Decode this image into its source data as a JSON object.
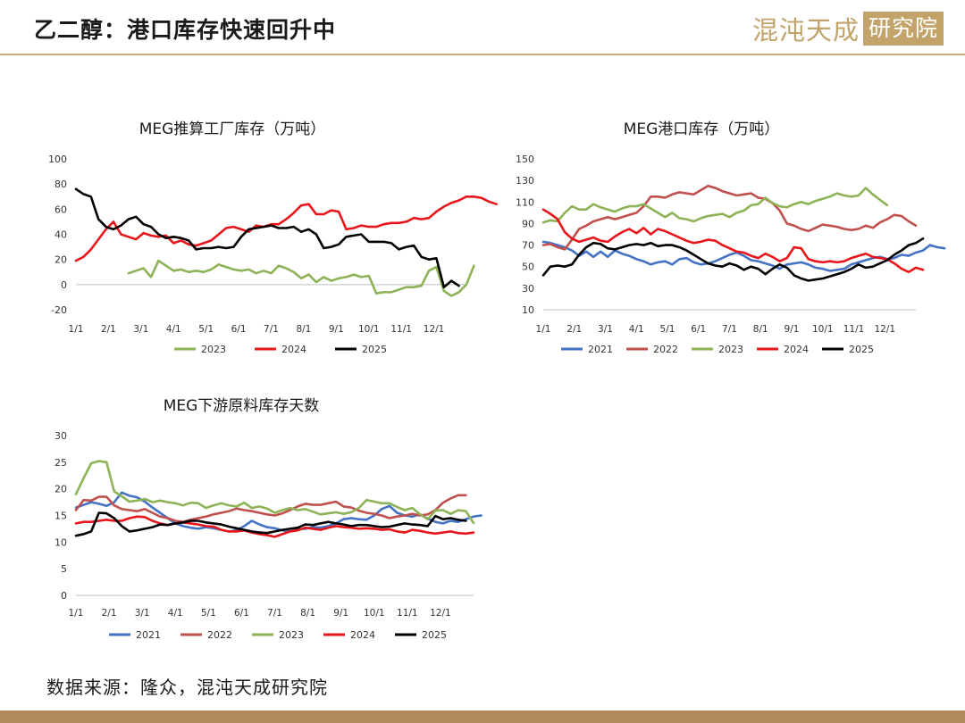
{
  "page": {
    "title": "乙二醇：港口库存快速回升中",
    "logo_text": "混沌天成",
    "logo_box": "研究院",
    "source": "数据来源：隆众，混沌天成研究院"
  },
  "series_colors": {
    "2021": "#4472c4",
    "2022": "#c0504d",
    "2023": "#8db356",
    "2024": "#e8161b",
    "2025": "#000000"
  },
  "chart_data": [
    {
      "id": "factory",
      "type": "line",
      "title": "MEG推算工厂库存（万吨）",
      "x_ticks": [
        "1/1",
        "2/1",
        "3/1",
        "4/1",
        "5/1",
        "6/1",
        "7/1",
        "8/1",
        "9/1",
        "10/1",
        "11/1",
        "12/1"
      ],
      "ylim": [
        -20,
        100
      ],
      "y_ticks": [
        -20,
        0,
        20,
        40,
        60,
        80,
        100
      ],
      "series": [
        {
          "name": "2023",
          "values": [
            null,
            null,
            null,
            null,
            null,
            null,
            null,
            9,
            11,
            13,
            6,
            19,
            15,
            11,
            12,
            10,
            11,
            10,
            12,
            16,
            14,
            12,
            11,
            12,
            9,
            11,
            9,
            15,
            13,
            10,
            5,
            8,
            2,
            6,
            3,
            5,
            6,
            8,
            6,
            7,
            -7,
            -6,
            -6,
            -4,
            -2,
            -2,
            -1,
            11,
            14,
            -5,
            -9,
            -6,
            0,
            15
          ]
        },
        {
          "name": "2024",
          "values": [
            19,
            22,
            28,
            36,
            44,
            50,
            40,
            38,
            36,
            41,
            39,
            38,
            39,
            33,
            35,
            32,
            31,
            33,
            35,
            40,
            45,
            46,
            44,
            42,
            47,
            46,
            48,
            48,
            52,
            57,
            63,
            64,
            56,
            56,
            59,
            58,
            44,
            45,
            47,
            46,
            46,
            48,
            49,
            49,
            50,
            53,
            52,
            53,
            58,
            62,
            65,
            67,
            70,
            70,
            69,
            66,
            64
          ]
        },
        {
          "name": "2025",
          "values": [
            76,
            72,
            70,
            52,
            46,
            44,
            47,
            52,
            54,
            48,
            46,
            40,
            37,
            38,
            37,
            35,
            28,
            29,
            29,
            30,
            29,
            30,
            38,
            44,
            45,
            46,
            47,
            45,
            45,
            46,
            42,
            44,
            40,
            29,
            30,
            32,
            38,
            39,
            40,
            34,
            34,
            34,
            33,
            28,
            30,
            31,
            22,
            20,
            21,
            -2,
            3,
            -1
          ]
        }
      ]
    },
    {
      "id": "port",
      "type": "line",
      "title": "MEG港口库存（万吨）",
      "x_ticks": [
        "1/1",
        "2/1",
        "3/1",
        "4/1",
        "5/1",
        "6/1",
        "7/1",
        "8/1",
        "9/1",
        "10/1",
        "11/1",
        "12/1"
      ],
      "ylim": [
        10,
        150
      ],
      "y_ticks": [
        10,
        30,
        50,
        70,
        90,
        110,
        130,
        150
      ],
      "series": [
        {
          "name": "2021",
          "values": [
            73,
            72,
            70,
            68,
            65,
            60,
            64,
            59,
            64,
            59,
            65,
            62,
            60,
            57,
            55,
            52,
            54,
            55,
            52,
            57,
            58,
            54,
            52,
            53,
            55,
            58,
            61,
            63,
            60,
            56,
            55,
            53,
            51,
            48,
            52,
            53,
            54,
            52,
            49,
            48,
            46,
            47,
            48,
            52,
            54,
            56,
            58,
            59,
            57,
            58,
            61,
            60,
            63,
            65,
            70,
            68,
            67
          ]
        },
        {
          "name": "2022",
          "values": [
            70,
            71,
            68,
            66,
            75,
            85,
            88,
            92,
            94,
            96,
            94,
            96,
            98,
            100,
            106,
            115,
            115,
            114,
            117,
            119,
            118,
            117,
            121,
            125,
            123,
            120,
            118,
            116,
            117,
            118,
            114,
            113,
            109,
            102,
            90,
            88,
            85,
            83,
            86,
            89,
            88,
            87,
            85,
            84,
            85,
            88,
            86,
            91,
            94,
            98,
            97,
            92,
            88
          ]
        },
        {
          "name": "2023",
          "values": [
            91,
            93,
            92,
            100,
            106,
            103,
            103,
            108,
            105,
            103,
            101,
            104,
            106,
            106,
            108,
            104,
            100,
            96,
            100,
            95,
            94,
            92,
            95,
            97,
            98,
            99,
            96,
            100,
            102,
            107,
            108,
            114,
            109,
            106,
            105,
            108,
            110,
            108,
            111,
            113,
            115,
            118,
            116,
            115,
            116,
            123,
            117,
            112,
            107
          ]
        },
        {
          "name": "2024",
          "values": [
            103,
            99,
            94,
            82,
            76,
            73,
            75,
            77,
            74,
            73,
            78,
            82,
            85,
            81,
            86,
            80,
            85,
            83,
            80,
            77,
            74,
            72,
            73,
            75,
            74,
            70,
            67,
            64,
            63,
            60,
            58,
            62,
            59,
            55,
            58,
            68,
            67,
            57,
            55,
            54,
            55,
            54,
            55,
            58,
            60,
            62,
            59,
            58,
            57,
            53,
            48,
            45,
            49,
            47
          ]
        },
        {
          "name": "2025",
          "values": [
            42,
            50,
            51,
            50,
            52,
            61,
            68,
            72,
            71,
            67,
            66,
            68,
            70,
            71,
            70,
            72,
            69,
            70,
            70,
            68,
            65,
            61,
            57,
            53,
            51,
            50,
            53,
            51,
            47,
            50,
            48,
            43,
            48,
            52,
            49,
            42,
            39,
            37,
            38,
            39,
            41,
            43,
            45,
            48,
            52,
            49,
            50,
            53,
            56,
            61,
            65,
            70,
            72,
            76
          ]
        }
      ]
    },
    {
      "id": "downstream",
      "type": "line",
      "title": "MEG下游原料库存天数",
      "x_ticks": [
        "1/1",
        "2/1",
        "3/1",
        "4/1",
        "5/1",
        "6/1",
        "7/1",
        "8/1",
        "9/1",
        "10/1",
        "11/1",
        "12/1"
      ],
      "ylim": [
        0,
        30
      ],
      "y_ticks": [
        0,
        5,
        10,
        15,
        20,
        25,
        30
      ],
      "series": [
        {
          "name": "2021",
          "values": [
            16.5,
            17,
            17.5,
            17.2,
            16.8,
            17.5,
            19.3,
            18.7,
            18.4,
            17.6,
            16.5,
            15.5,
            14.5,
            13.5,
            13.0,
            12.7,
            12.5,
            12.8,
            12.6,
            12.3,
            12.0,
            12.2,
            13.0,
            14.0,
            13.3,
            12.8,
            12.6,
            12.2,
            12.0,
            12.4,
            12.5,
            12.8,
            12.7,
            13.0,
            13.5,
            14.3,
            14.5,
            14.3,
            14.2,
            15.0,
            16.2,
            16.8,
            15.5,
            15.0,
            14.8,
            15.2,
            14.4,
            13.8,
            13.5,
            14.0,
            13.8,
            14.3,
            14.8,
            15.0
          ]
        },
        {
          "name": "2022",
          "values": [
            16.0,
            17.9,
            17.8,
            18.5,
            18.5,
            16.9,
            16.2,
            16.0,
            15.8,
            16.2,
            15.5,
            14.8,
            14.5,
            14.0,
            13.8,
            14.2,
            14.5,
            14.8,
            15.2,
            15.5,
            15.8,
            16.3,
            16.0,
            15.8,
            15.5,
            15.2,
            15.0,
            15.4,
            16.0,
            16.7,
            17.2,
            17.0,
            17.0,
            17.3,
            17.6,
            16.7,
            16.5,
            15.9,
            15.5,
            15.3,
            15.0,
            14.5,
            14.8,
            15.0,
            15.3,
            15.0,
            15.2,
            16.0,
            17.4,
            18.2,
            18.8,
            18.8
          ]
        },
        {
          "name": "2023",
          "values": [
            19.0,
            22.0,
            24.8,
            25.2,
            25.0,
            19.5,
            18.6,
            17.6,
            17.8,
            18.1,
            17.5,
            17.8,
            17.5,
            17.3,
            16.9,
            17.4,
            17.3,
            16.4,
            16.9,
            17.3,
            16.9,
            16.7,
            17.4,
            16.4,
            16.7,
            16.3,
            15.5,
            16.0,
            16.4,
            16.0,
            16.2,
            15.7,
            15.2,
            15.4,
            15.6,
            15.3,
            15.6,
            16.4,
            17.9,
            17.6,
            17.3,
            17.3,
            16.6,
            16.0,
            16.4,
            15.2,
            14.3,
            15.9,
            16.0,
            15.3,
            16.0,
            15.8,
            13.6
          ]
        },
        {
          "name": "2024",
          "values": [
            13.5,
            13.8,
            13.8,
            14.0,
            14.2,
            14.0,
            14.0,
            14.5,
            14.8,
            14.7,
            14.0,
            13.5,
            13.2,
            13.5,
            13.7,
            13.5,
            13.3,
            13.0,
            12.9,
            12.3,
            12.0,
            12.0,
            12.2,
            11.8,
            11.5,
            11.3,
            11.0,
            11.5,
            12.0,
            12.2,
            12.7,
            12.5,
            12.3,
            12.7,
            13.0,
            12.8,
            12.7,
            12.5,
            12.6,
            12.5,
            12.3,
            12.4,
            12.0,
            11.8,
            12.3,
            12.1,
            11.8,
            11.6,
            11.8,
            12.0,
            11.7,
            11.6,
            11.8
          ]
        },
        {
          "name": "2025",
          "values": [
            11.2,
            11.5,
            12.0,
            15.5,
            15.4,
            14.5,
            13.0,
            12.0,
            12.2,
            12.5,
            12.8,
            13.3,
            13.2,
            13.5,
            13.7,
            14.0,
            14.0,
            13.7,
            13.5,
            13.3,
            12.9,
            12.6,
            12.3,
            12.0,
            11.8,
            11.7,
            12.0,
            12.3,
            12.5,
            12.7,
            13.3,
            13.2,
            13.5,
            13.8,
            13.5,
            13.3,
            13.0,
            13.2,
            13.2,
            13.0,
            12.8,
            12.9,
            13.2,
            13.5,
            13.3,
            13.2,
            13.0,
            14.9,
            14.3,
            14.5,
            14.2,
            14.0
          ]
        }
      ]
    }
  ]
}
